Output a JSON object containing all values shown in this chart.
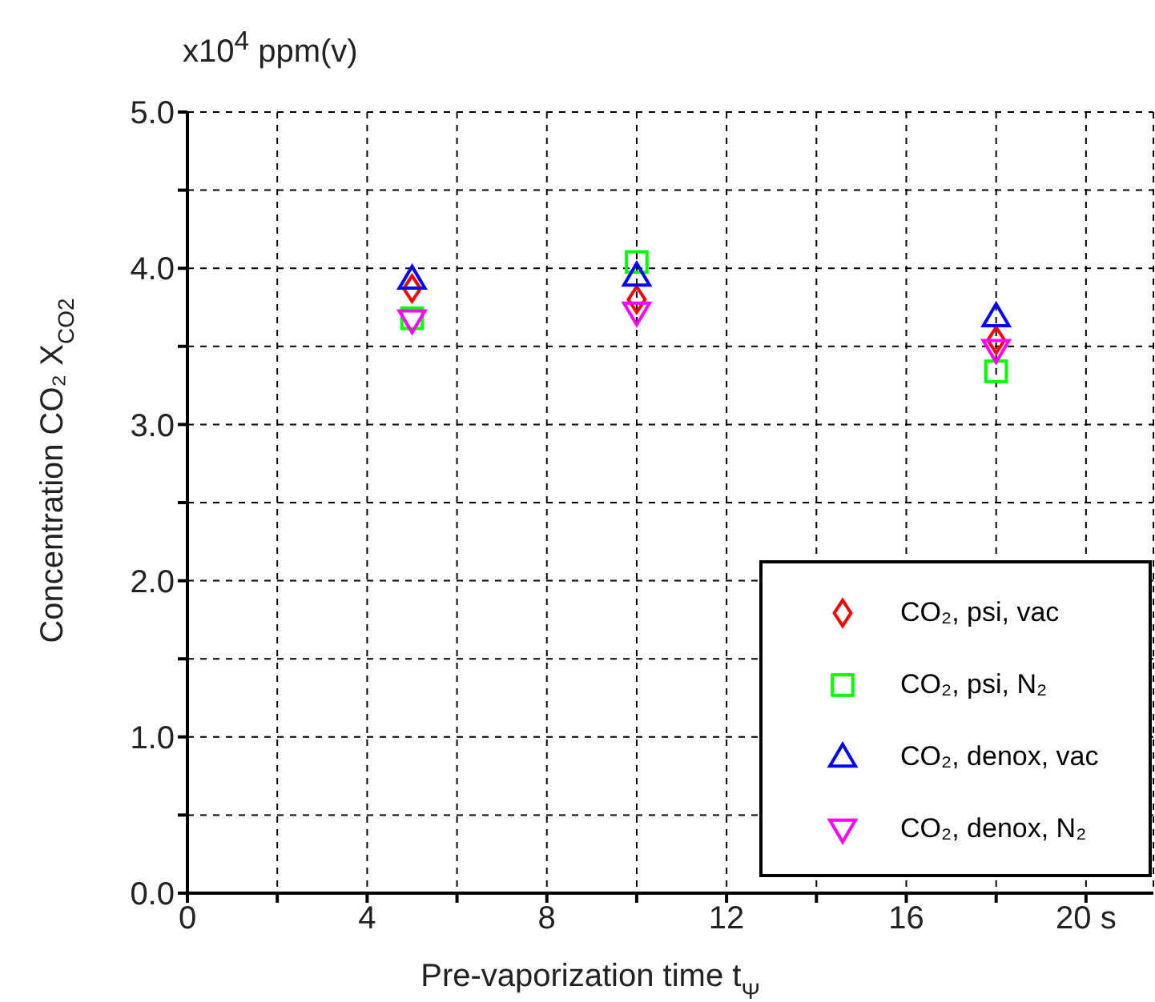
{
  "chart_data": {
    "type": "scatter",
    "xlabel": "Pre-vaporization time  t$_{Ψ}$",
    "ylabel": "Concentration CO₂  X$_{CO2}$",
    "annotations": [
      "x10$^{4}$ ppm(v)"
    ],
    "x": [
      5,
      10,
      18
    ],
    "series": [
      {
        "name": "CO₂, psi, vac",
        "color": "#ff0000",
        "marker": "diamond",
        "values": [
          3.87,
          3.8,
          3.54
        ]
      },
      {
        "name": "CO₂, psi, N₂",
        "color": "#00ff00",
        "marker": "square",
        "values": [
          3.68,
          4.04,
          3.34
        ]
      },
      {
        "name": "CO₂, denox, vac",
        "color": "#0000ff",
        "marker": "triangle",
        "values": [
          3.93,
          3.95,
          3.69
        ]
      },
      {
        "name": "CO₂, denox, N₂",
        "color": "#ff00ff",
        "marker": "triangle-down",
        "values": [
          3.67,
          3.72,
          3.48
        ]
      }
    ],
    "xlim": [
      0,
      21.5
    ],
    "xticks": [
      0,
      {
        "value": 2,
        "label": null
      },
      4,
      {
        "value": 6,
        "label": null
      },
      8,
      {
        "value": 10,
        "label": null
      },
      12,
      {
        "value": 14,
        "label": null
      },
      16,
      {
        "value": 18,
        "label": null
      },
      {
        "value": 20,
        "label": "20 s"
      }
    ],
    "ylim": [
      0,
      5
    ],
    "yticks": [
      {
        "value": 0,
        "label": "0.0"
      },
      {
        "value": 0.5,
        "label": null
      },
      {
        "value": 1,
        "label": "1.0"
      },
      {
        "value": 1.5,
        "label": null
      },
      {
        "value": 2,
        "label": "2.0"
      },
      {
        "value": 2.5,
        "label": null
      },
      {
        "value": 3,
        "label": "3.0"
      },
      {
        "value": 3.5,
        "label": null
      },
      {
        "value": 4,
        "label": "4.0"
      },
      {
        "value": 4.5,
        "label": null
      },
      {
        "value": 5,
        "label": "5.0"
      }
    ],
    "grid": true,
    "legend": "bottom right"
  }
}
